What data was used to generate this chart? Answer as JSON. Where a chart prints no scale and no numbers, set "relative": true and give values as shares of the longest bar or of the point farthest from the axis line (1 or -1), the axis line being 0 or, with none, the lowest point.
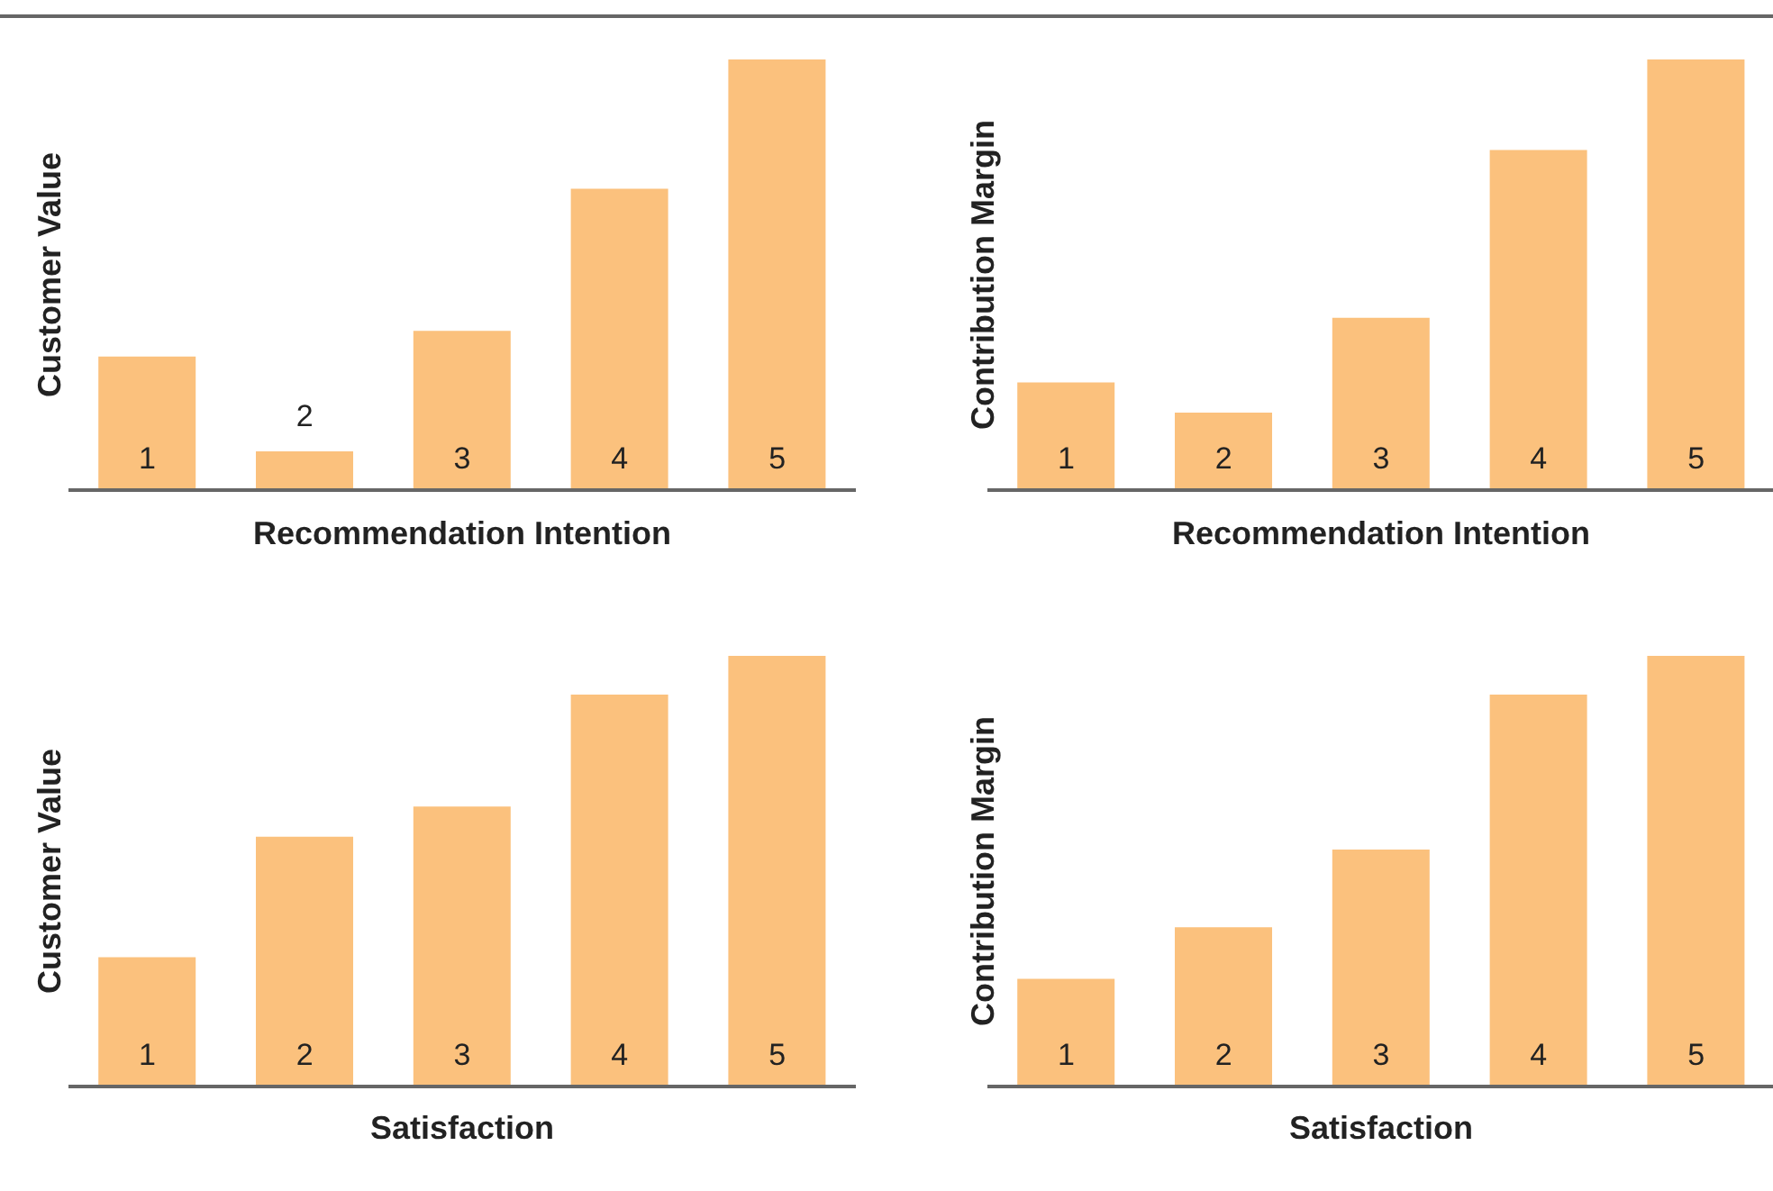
{
  "chart_data": [
    {
      "type": "bar",
      "relative": true,
      "categories": [
        "1",
        "2",
        "3",
        "4",
        "5"
      ],
      "values": [
        0.31,
        0.09,
        0.37,
        0.7,
        1
      ],
      "color": "#fbc17d",
      "xlabel": "Recommendation Intention",
      "ylabel": "Customer Value"
    },
    {
      "type": "bar",
      "relative": true,
      "categories": [
        "1",
        "2",
        "3",
        "4",
        "5"
      ],
      "values": [
        0.25,
        0.18,
        0.4,
        0.79,
        1
      ],
      "color": "#fbc17d",
      "xlabel": "Recommendation Intention",
      "ylabel": "Contribution Margin"
    },
    {
      "type": "bar",
      "relative": true,
      "categories": [
        "1",
        "2",
        "3",
        "4",
        "5"
      ],
      "values": [
        0.3,
        0.58,
        0.65,
        0.91,
        1
      ],
      "color": "#fbc17d",
      "xlabel": "Satisfaction",
      "ylabel": "Customer Value"
    },
    {
      "type": "bar",
      "relative": true,
      "categories": [
        "1",
        "2",
        "3",
        "4",
        "5"
      ],
      "values": [
        0.25,
        0.37,
        0.55,
        0.91,
        1
      ],
      "color": "#fbc17d",
      "xlabel": "Satisfaction",
      "ylabel": "Contribution Margin"
    }
  ]
}
